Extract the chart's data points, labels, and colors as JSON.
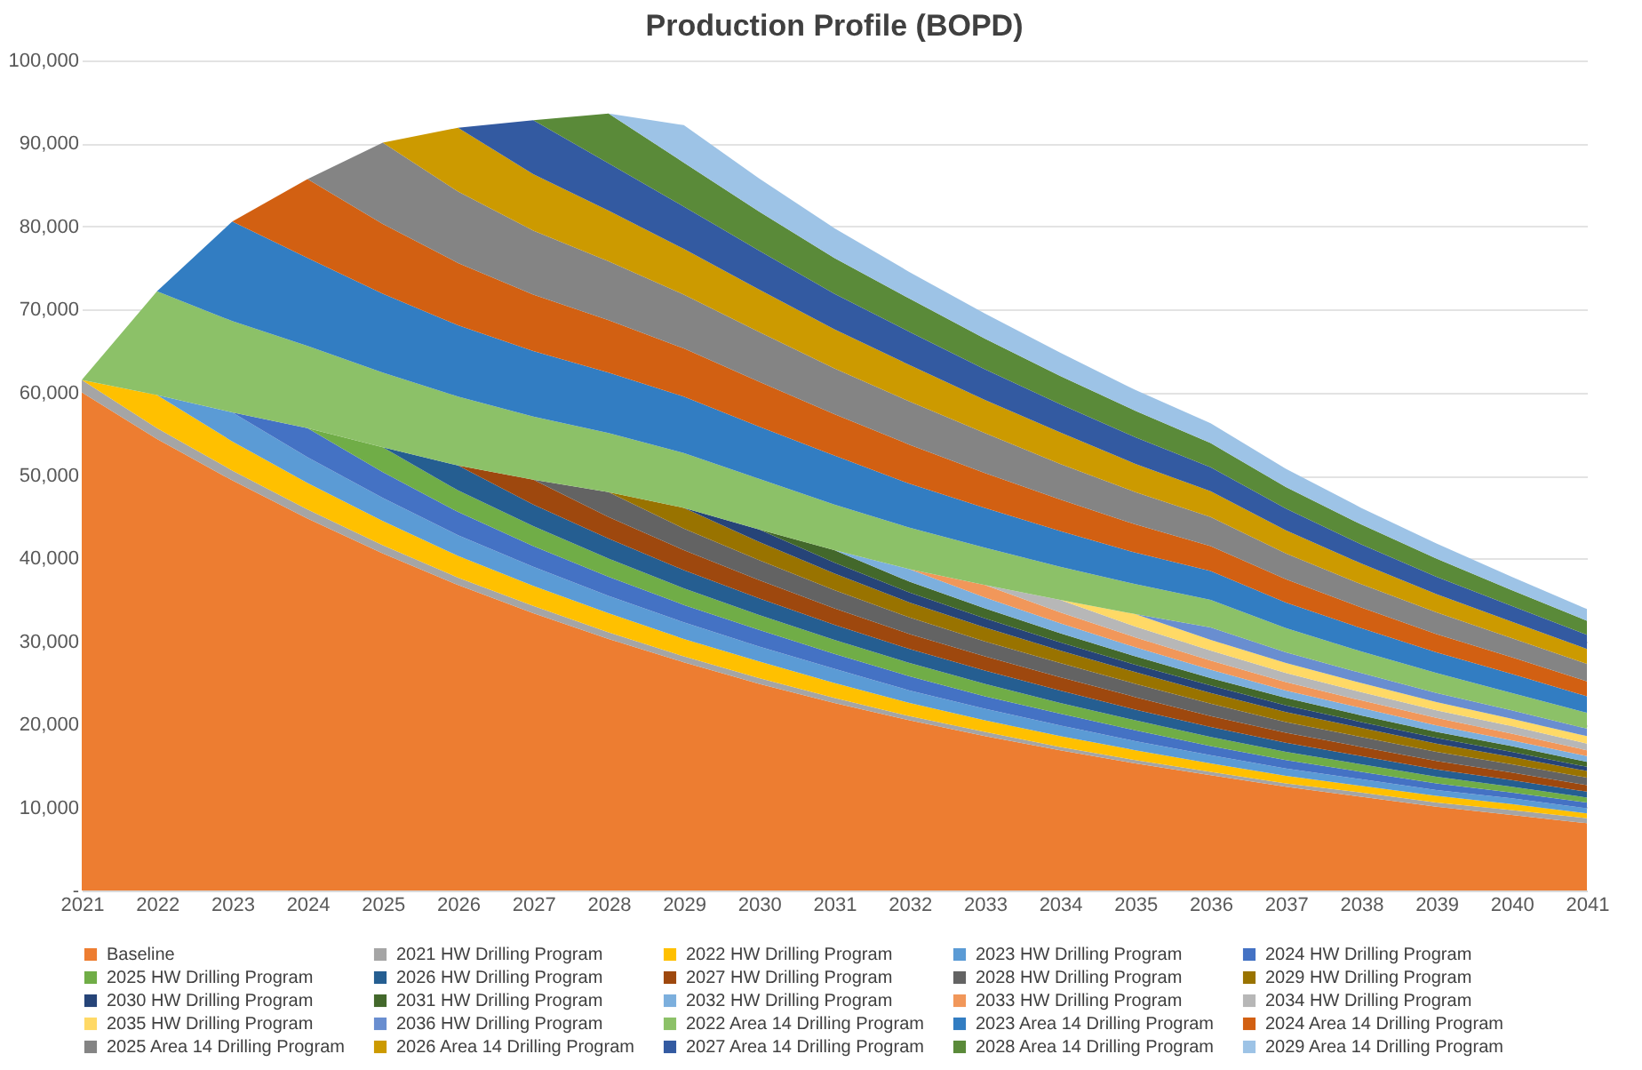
{
  "chart_data": {
    "type": "area",
    "title": "Production Profile (BOPD)",
    "stacked": true,
    "grid": "y",
    "legend": "bottom",
    "categories": [
      "2021",
      "2022",
      "2023",
      "2024",
      "2025",
      "2026",
      "2027",
      "2028",
      "2029",
      "2030",
      "2031",
      "2032",
      "2033",
      "2034",
      "2035",
      "2036",
      "2037",
      "2038",
      "2039",
      "2040",
      "2041"
    ],
    "ylim": [
      0,
      100000
    ],
    "yticks": [
      {
        "value": 0,
        "label": "-"
      },
      {
        "value": 10000,
        "label": "10,000"
      },
      {
        "value": 20000,
        "label": "20,000"
      },
      {
        "value": 30000,
        "label": "30,000"
      },
      {
        "value": 40000,
        "label": "40,000"
      },
      {
        "value": 50000,
        "label": "50,000"
      },
      {
        "value": 60000,
        "label": "60,000"
      },
      {
        "value": 70000,
        "label": "70,000"
      },
      {
        "value": 80000,
        "label": "80,000"
      },
      {
        "value": 90000,
        "label": "90,000"
      },
      {
        "value": 100000,
        "label": "100,000"
      }
    ],
    "series": [
      {
        "name": "Baseline",
        "color": "#ed7d31",
        "values": [
          60000,
          54400,
          49400,
          44800,
          40600,
          36800,
          33400,
          30300,
          27500,
          24900,
          22600,
          20500,
          18600,
          16900,
          15300,
          13900,
          12500,
          11300,
          10100,
          9100,
          8100
        ]
      },
      {
        "name": "2021 HW Drilling Program",
        "color": "#a5a5a5",
        "values": [
          1500,
          1300,
          1200,
          1100,
          1000,
          900,
          900,
          800,
          700,
          700,
          600,
          500,
          500,
          400,
          400,
          400,
          400,
          500,
          500,
          600,
          600
        ]
      },
      {
        "name": "2022 HW Drilling Program",
        "color": "#ffc000",
        "values": [
          0,
          4000,
          3500,
          3200,
          2900,
          2600,
          2400,
          2300,
          2100,
          2000,
          1800,
          1600,
          1400,
          1300,
          1200,
          1000,
          900,
          800,
          800,
          700,
          600
        ]
      },
      {
        "name": "2023 HW Drilling Program",
        "color": "#5b9bd5",
        "values": [
          0,
          0,
          3500,
          3100,
          2800,
          2500,
          2300,
          2100,
          2000,
          1800,
          1700,
          1500,
          1400,
          1300,
          1100,
          1000,
          900,
          800,
          700,
          700,
          600
        ]
      },
      {
        "name": "2024 HW Drilling Program",
        "color": "#4472c4",
        "values": [
          0,
          0,
          0,
          3500,
          3100,
          2800,
          2500,
          2300,
          2100,
          2000,
          1800,
          1700,
          1500,
          1400,
          1300,
          1100,
          1000,
          900,
          800,
          700,
          700
        ]
      },
      {
        "name": "2025 HW Drilling Program",
        "color": "#70ad47",
        "values": [
          0,
          0,
          0,
          0,
          3000,
          2600,
          2400,
          2200,
          2000,
          1800,
          1700,
          1600,
          1500,
          1300,
          1200,
          1100,
          1000,
          900,
          800,
          700,
          600
        ]
      },
      {
        "name": "2026 HW Drilling Program",
        "color": "#255e91",
        "values": [
          0,
          0,
          0,
          0,
          0,
          3000,
          2600,
          2400,
          2200,
          2000,
          1800,
          1700,
          1600,
          1500,
          1300,
          1200,
          1100,
          1000,
          900,
          800,
          700
        ]
      },
      {
        "name": "2027 HW Drilling Program",
        "color": "#9e480e",
        "values": [
          0,
          0,
          0,
          0,
          0,
          0,
          3000,
          2600,
          2400,
          2200,
          2000,
          1800,
          1700,
          1600,
          1500,
          1300,
          1200,
          1100,
          1000,
          900,
          800
        ]
      },
      {
        "name": "2028 HW Drilling Program",
        "color": "#636363",
        "values": [
          0,
          0,
          0,
          0,
          0,
          0,
          0,
          3000,
          2600,
          2400,
          2200,
          2000,
          1800,
          1700,
          1600,
          1500,
          1300,
          1200,
          1100,
          1000,
          900
        ]
      },
      {
        "name": "2029 HW Drilling Program",
        "color": "#997300",
        "values": [
          0,
          0,
          0,
          0,
          0,
          0,
          0,
          0,
          2500,
          2200,
          2000,
          1800,
          1700,
          1500,
          1400,
          1300,
          1200,
          1100,
          1000,
          900,
          800
        ]
      },
      {
        "name": "2030 HW Drilling Program",
        "color": "#264478",
        "values": [
          0,
          0,
          0,
          0,
          0,
          0,
          0,
          0,
          0,
          1500,
          1300,
          1200,
          1100,
          1000,
          900,
          900,
          800,
          700,
          700,
          600,
          500
        ]
      },
      {
        "name": "2031 HW Drilling Program",
        "color": "#43682b",
        "values": [
          0,
          0,
          0,
          0,
          0,
          0,
          0,
          0,
          0,
          0,
          1500,
          1300,
          1200,
          1100,
          1000,
          900,
          900,
          800,
          700,
          700,
          600
        ]
      },
      {
        "name": "2032 HW Drilling Program",
        "color": "#7cafdd",
        "values": [
          0,
          0,
          0,
          0,
          0,
          0,
          0,
          0,
          0,
          0,
          0,
          1500,
          1300,
          1200,
          1100,
          1000,
          900,
          900,
          800,
          700,
          700
        ]
      },
      {
        "name": "2033 HW Drilling Program",
        "color": "#f1975a",
        "values": [
          0,
          0,
          0,
          0,
          0,
          0,
          0,
          0,
          0,
          0,
          0,
          0,
          1500,
          1300,
          1200,
          1100,
          1000,
          900,
          900,
          800,
          700
        ]
      },
      {
        "name": "2034 HW Drilling Program",
        "color": "#b7b7b7",
        "values": [
          0,
          0,
          0,
          0,
          0,
          0,
          0,
          0,
          0,
          0,
          0,
          0,
          0,
          1500,
          1300,
          1200,
          1100,
          1000,
          900,
          900,
          800
        ]
      },
      {
        "name": "2035 HW Drilling Program",
        "color": "#ffd966",
        "values": [
          0,
          0,
          0,
          0,
          0,
          0,
          0,
          0,
          0,
          0,
          0,
          0,
          0,
          0,
          1500,
          1300,
          1200,
          1100,
          1000,
          900,
          900
        ]
      },
      {
        "name": "2036 HW Drilling Program",
        "color": "#698ed0",
        "values": [
          0,
          0,
          0,
          0,
          0,
          0,
          0,
          0,
          0,
          0,
          0,
          0,
          0,
          0,
          0,
          1500,
          1300,
          1200,
          1100,
          1000,
          900
        ]
      },
      {
        "name": "2022 Area 14 Drilling Program",
        "color": "#8cc168",
        "values": [
          0,
          12500,
          11000,
          9900,
          9000,
          8300,
          7600,
          7100,
          6600,
          6100,
          5500,
          5000,
          4500,
          4000,
          3600,
          3300,
          2900,
          2600,
          2400,
          2100,
          1900
        ]
      },
      {
        "name": "2023 Area 14 Drilling Program",
        "color": "#327dc2",
        "values": [
          0,
          0,
          12000,
          10600,
          9500,
          8600,
          7900,
          7300,
          6800,
          6300,
          5900,
          5300,
          4800,
          4300,
          3800,
          3500,
          3100,
          2800,
          2500,
          2300,
          2000
        ]
      },
      {
        "name": "2024 Area 14 Drilling Program",
        "color": "#d26012",
        "values": [
          0,
          0,
          0,
          9500,
          8400,
          7500,
          6800,
          6300,
          5800,
          5400,
          5000,
          4700,
          4200,
          3800,
          3400,
          3000,
          2800,
          2500,
          2200,
          2000,
          1800
        ]
      },
      {
        "name": "2025 Area 14 Drilling Program",
        "color": "#848484",
        "values": [
          0,
          0,
          0,
          0,
          9800,
          8600,
          7700,
          7100,
          6500,
          6000,
          5500,
          5200,
          4800,
          4300,
          3900,
          3500,
          3100,
          2800,
          2600,
          2300,
          2100
        ]
      },
      {
        "name": "2026 Area 14 Drilling Program",
        "color": "#cc9a00",
        "values": [
          0,
          0,
          0,
          0,
          0,
          7700,
          6800,
          6100,
          5500,
          5100,
          4700,
          4400,
          4000,
          3800,
          3400,
          3100,
          2800,
          2500,
          2200,
          2000,
          1800
        ]
      },
      {
        "name": "2027 Area 14 Drilling Program",
        "color": "#335aa1",
        "values": [
          0,
          0,
          0,
          0,
          0,
          0,
          6500,
          5700,
          5100,
          4700,
          4300,
          4000,
          3700,
          3400,
          3200,
          2900,
          2600,
          2300,
          2100,
          1900,
          1700
        ]
      },
      {
        "name": "2028 Area 14 Drilling Program",
        "color": "#5a8a39",
        "values": [
          0,
          0,
          0,
          0,
          0,
          0,
          0,
          6000,
          5300,
          4700,
          4300,
          4000,
          3700,
          3400,
          3200,
          2900,
          2600,
          2400,
          2200,
          1900,
          1700
        ]
      },
      {
        "name": "2029 Area 14 Drilling Program",
        "color": "#9dc3e6",
        "values": [
          0,
          0,
          0,
          0,
          0,
          0,
          0,
          0,
          4500,
          4000,
          3600,
          3200,
          3000,
          2800,
          2500,
          2400,
          2200,
          2000,
          1800,
          1600,
          1400
        ]
      }
    ]
  }
}
